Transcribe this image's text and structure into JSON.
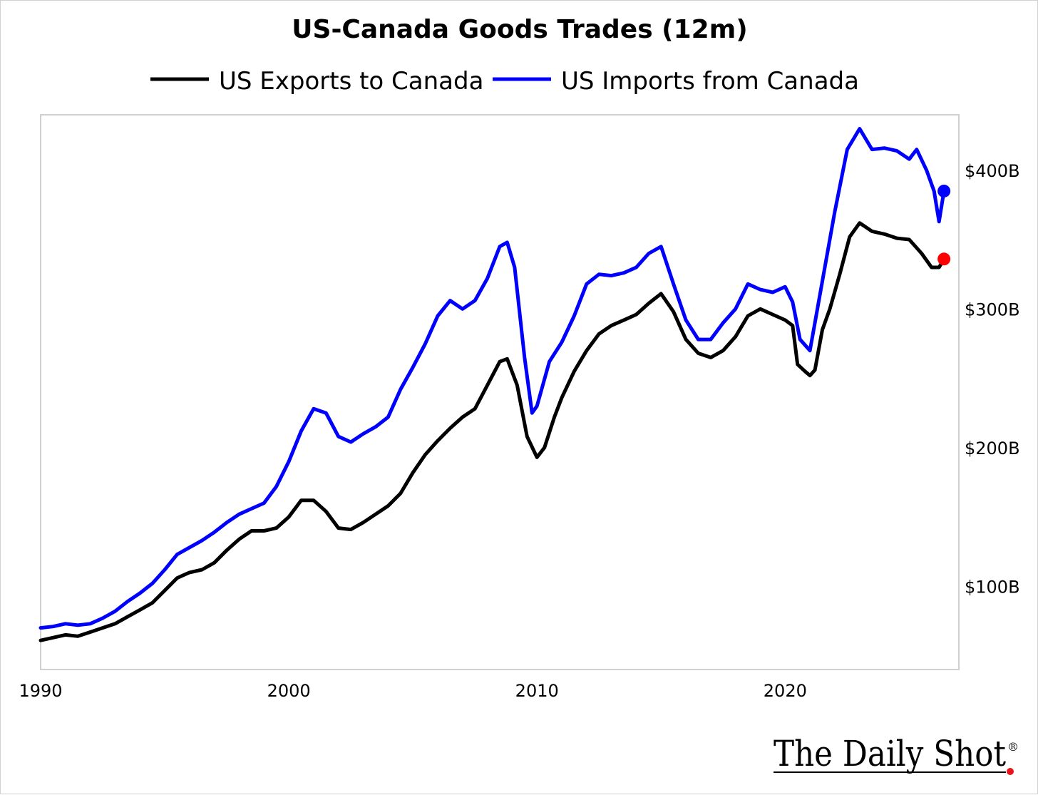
{
  "chart_data": {
    "type": "line",
    "title": "US-Canada Goods Trades (12m)",
    "xlabel": "",
    "ylabel": "",
    "xlim": [
      1990,
      2027
    ],
    "ylim": [
      40,
      440
    ],
    "x_ticks": [
      {
        "value": 1990,
        "label": "1990"
      },
      {
        "value": 2000,
        "label": "2000"
      },
      {
        "value": 2010,
        "label": "2010"
      },
      {
        "value": 2020,
        "label": "2020"
      }
    ],
    "y_ticks": [
      {
        "value": 100,
        "label": "$100B"
      },
      {
        "value": 200,
        "label": "$200B"
      },
      {
        "value": 300,
        "label": "$300B"
      },
      {
        "value": 400,
        "label": "$400B"
      }
    ],
    "grid": false,
    "legend_position": "top-center",
    "series": [
      {
        "name": "US Exports to Canada",
        "color": "#000000",
        "end_marker_color": "#ff0000",
        "points": [
          [
            1990.0,
            61
          ],
          [
            1990.5,
            63
          ],
          [
            1991.0,
            65
          ],
          [
            1991.5,
            64
          ],
          [
            1992.0,
            67
          ],
          [
            1992.5,
            70
          ],
          [
            1993.0,
            73
          ],
          [
            1993.5,
            78
          ],
          [
            1994.0,
            83
          ],
          [
            1994.5,
            88
          ],
          [
            1995.0,
            97
          ],
          [
            1995.5,
            106
          ],
          [
            1996.0,
            110
          ],
          [
            1996.5,
            112
          ],
          [
            1997.0,
            117
          ],
          [
            1997.5,
            126
          ],
          [
            1998.0,
            134
          ],
          [
            1998.5,
            140
          ],
          [
            1999.0,
            140
          ],
          [
            1999.5,
            142
          ],
          [
            2000.0,
            150
          ],
          [
            2000.5,
            162
          ],
          [
            2001.0,
            162
          ],
          [
            2001.5,
            154
          ],
          [
            2002.0,
            142
          ],
          [
            2002.5,
            141
          ],
          [
            2003.0,
            146
          ],
          [
            2003.5,
            152
          ],
          [
            2004.0,
            158
          ],
          [
            2004.5,
            167
          ],
          [
            2005.0,
            182
          ],
          [
            2005.5,
            195
          ],
          [
            2006.0,
            205
          ],
          [
            2006.5,
            214
          ],
          [
            2007.0,
            222
          ],
          [
            2007.5,
            228
          ],
          [
            2008.0,
            245
          ],
          [
            2008.5,
            262
          ],
          [
            2008.8,
            264
          ],
          [
            2009.2,
            245
          ],
          [
            2009.6,
            208
          ],
          [
            2010.0,
            193
          ],
          [
            2010.3,
            200
          ],
          [
            2010.7,
            222
          ],
          [
            2011.0,
            236
          ],
          [
            2011.5,
            255
          ],
          [
            2012.0,
            270
          ],
          [
            2012.5,
            282
          ],
          [
            2013.0,
            288
          ],
          [
            2013.5,
            292
          ],
          [
            2014.0,
            296
          ],
          [
            2014.5,
            304
          ],
          [
            2015.0,
            311
          ],
          [
            2015.5,
            298
          ],
          [
            2016.0,
            278
          ],
          [
            2016.5,
            268
          ],
          [
            2017.0,
            265
          ],
          [
            2017.5,
            270
          ],
          [
            2018.0,
            280
          ],
          [
            2018.5,
            295
          ],
          [
            2019.0,
            300
          ],
          [
            2019.5,
            296
          ],
          [
            2020.0,
            292
          ],
          [
            2020.3,
            288
          ],
          [
            2020.5,
            260
          ],
          [
            2020.8,
            255
          ],
          [
            2021.0,
            252
          ],
          [
            2021.2,
            256
          ],
          [
            2021.5,
            285
          ],
          [
            2021.8,
            300
          ],
          [
            2022.2,
            325
          ],
          [
            2022.6,
            352
          ],
          [
            2023.0,
            362
          ],
          [
            2023.5,
            356
          ],
          [
            2024.0,
            354
          ],
          [
            2024.5,
            351
          ],
          [
            2025.0,
            350
          ],
          [
            2025.5,
            340
          ],
          [
            2025.9,
            330
          ],
          [
            2026.2,
            330
          ],
          [
            2026.4,
            336
          ]
        ]
      },
      {
        "name": "US Imports from Canada",
        "color": "#0000ff",
        "end_marker_color": "#0000ff",
        "points": [
          [
            1990.0,
            70
          ],
          [
            1990.5,
            71
          ],
          [
            1991.0,
            73
          ],
          [
            1991.5,
            72
          ],
          [
            1992.0,
            73
          ],
          [
            1992.5,
            77
          ],
          [
            1993.0,
            82
          ],
          [
            1993.5,
            89
          ],
          [
            1994.0,
            95
          ],
          [
            1994.5,
            102
          ],
          [
            1995.0,
            112
          ],
          [
            1995.5,
            123
          ],
          [
            1996.0,
            128
          ],
          [
            1996.5,
            133
          ],
          [
            1997.0,
            139
          ],
          [
            1997.5,
            146
          ],
          [
            1998.0,
            152
          ],
          [
            1998.5,
            156
          ],
          [
            1999.0,
            160
          ],
          [
            1999.5,
            172
          ],
          [
            2000.0,
            190
          ],
          [
            2000.5,
            212
          ],
          [
            2001.0,
            228
          ],
          [
            2001.5,
            225
          ],
          [
            2002.0,
            208
          ],
          [
            2002.5,
            204
          ],
          [
            2003.0,
            210
          ],
          [
            2003.5,
            215
          ],
          [
            2004.0,
            222
          ],
          [
            2004.5,
            242
          ],
          [
            2005.0,
            258
          ],
          [
            2005.5,
            275
          ],
          [
            2006.0,
            295
          ],
          [
            2006.5,
            306
          ],
          [
            2007.0,
            300
          ],
          [
            2007.5,
            306
          ],
          [
            2008.0,
            322
          ],
          [
            2008.5,
            345
          ],
          [
            2008.8,
            348
          ],
          [
            2009.1,
            330
          ],
          [
            2009.5,
            265
          ],
          [
            2009.8,
            225
          ],
          [
            2010.0,
            230
          ],
          [
            2010.5,
            262
          ],
          [
            2011.0,
            276
          ],
          [
            2011.5,
            295
          ],
          [
            2012.0,
            318
          ],
          [
            2012.5,
            325
          ],
          [
            2013.0,
            324
          ],
          [
            2013.5,
            326
          ],
          [
            2014.0,
            330
          ],
          [
            2014.5,
            340
          ],
          [
            2015.0,
            345
          ],
          [
            2015.5,
            318
          ],
          [
            2016.0,
            292
          ],
          [
            2016.5,
            278
          ],
          [
            2017.0,
            278
          ],
          [
            2017.5,
            290
          ],
          [
            2018.0,
            300
          ],
          [
            2018.5,
            318
          ],
          [
            2019.0,
            314
          ],
          [
            2019.5,
            312
          ],
          [
            2020.0,
            316
          ],
          [
            2020.3,
            305
          ],
          [
            2020.6,
            278
          ],
          [
            2021.0,
            270
          ],
          [
            2021.5,
            320
          ],
          [
            2022.0,
            370
          ],
          [
            2022.5,
            415
          ],
          [
            2023.0,
            430
          ],
          [
            2023.5,
            415
          ],
          [
            2024.0,
            416
          ],
          [
            2024.5,
            414
          ],
          [
            2025.0,
            408
          ],
          [
            2025.3,
            415
          ],
          [
            2025.7,
            400
          ],
          [
            2026.0,
            385
          ],
          [
            2026.2,
            363
          ],
          [
            2026.4,
            385
          ]
        ]
      }
    ]
  },
  "branding": {
    "name": "The Daily Shot",
    "registered": "®",
    "accent_dot_color": "#e8141c"
  }
}
